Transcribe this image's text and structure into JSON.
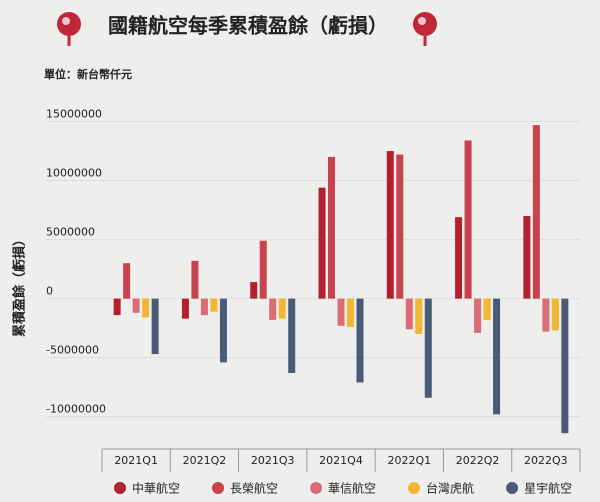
{
  "chart_data": {
    "type": "bar",
    "title": "國籍航空每季累積盈餘（虧損）",
    "subtitle": "單位：新台幣仟元",
    "y_label": "累積盈餘（虧損）",
    "categories": [
      "2021Q1",
      "2021Q2",
      "2021Q3",
      "2021Q4",
      "2022Q1",
      "2022Q2",
      "2022Q3"
    ],
    "series": [
      {
        "name": "中華航空",
        "color": "#b3202f",
        "values": [
          -1400000,
          -1700000,
          1400000,
          9400000,
          12500000,
          6900000,
          7000000
        ]
      },
      {
        "name": "長榮航空",
        "color": "#c8434d",
        "values": [
          3000000,
          3200000,
          4900000,
          12000000,
          12200000,
          13400000,
          14700000
        ]
      },
      {
        "name": "華信航空",
        "color": "#db6c74",
        "values": [
          -1200000,
          -1400000,
          -1800000,
          -2300000,
          -2600000,
          -2900000,
          -2800000
        ]
      },
      {
        "name": "台灣虎航",
        "color": "#f2b632",
        "values": [
          -1600000,
          -1100000,
          -1700000,
          -2400000,
          -3000000,
          -1800000,
          -2700000
        ]
      },
      {
        "name": "星宇航空",
        "color": "#4b5a77",
        "values": [
          -4700000,
          -5400000,
          -6300000,
          -7100000,
          -8400000,
          -9800000,
          -11400000
        ]
      }
    ],
    "ylim": [
      -12400000,
      16400000
    ],
    "yticks": [
      -10000000,
      -5000000,
      0,
      5000000,
      10000000,
      15000000
    ],
    "grid": true,
    "legend": "bottom"
  }
}
